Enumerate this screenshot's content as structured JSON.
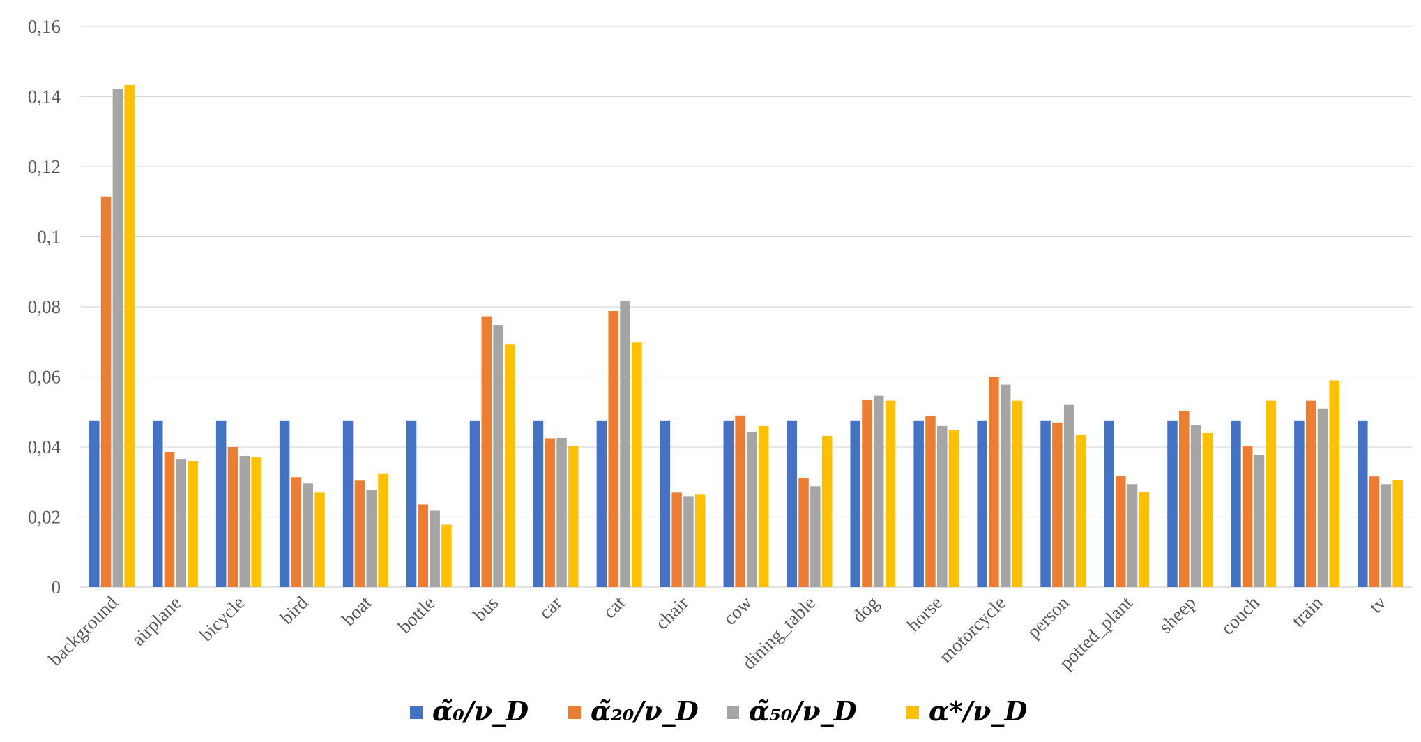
{
  "chart_data": {
    "type": "bar",
    "title": "",
    "xlabel": "",
    "ylabel": "",
    "ylim": [
      0,
      0.16
    ],
    "yticks": [
      "0",
      "0,02",
      "0,04",
      "0,06",
      "0,08",
      "0,1",
      "0,12",
      "0,14",
      "0,16"
    ],
    "grid": true,
    "legend_position": "bottom",
    "categories": [
      "background",
      "airplane",
      "bicycle",
      "bird",
      "boat",
      "bottle",
      "bus",
      "car",
      "cat",
      "chair",
      "cow",
      "dining_table",
      "dog",
      "horse",
      "motorcycle",
      "person",
      "potted_plant",
      "sheep",
      "couch",
      "train",
      "tv"
    ],
    "series": [
      {
        "name": "α̃₀/ν_D",
        "color": "#4472c4",
        "values": [
          0.0476,
          0.0476,
          0.0476,
          0.0476,
          0.0476,
          0.0476,
          0.0476,
          0.0476,
          0.0476,
          0.0476,
          0.0476,
          0.0476,
          0.0476,
          0.0476,
          0.0476,
          0.0476,
          0.0476,
          0.0476,
          0.0476,
          0.0476,
          0.0476
        ]
      },
      {
        "name": "α̃₂₀/ν_D",
        "color": "#ed7d31",
        "values": [
          0.1115,
          0.0386,
          0.04,
          0.0314,
          0.0304,
          0.0236,
          0.0773,
          0.0425,
          0.0788,
          0.027,
          0.049,
          0.0312,
          0.0535,
          0.0488,
          0.06,
          0.047,
          0.0318,
          0.0503,
          0.0402,
          0.0532,
          0.0316
        ]
      },
      {
        "name": "α̃₅₀/ν_D",
        "color": "#a5a5a5",
        "values": [
          0.1422,
          0.0366,
          0.0374,
          0.0296,
          0.0278,
          0.0218,
          0.0748,
          0.0426,
          0.0818,
          0.026,
          0.0444,
          0.0288,
          0.0546,
          0.046,
          0.0578,
          0.052,
          0.0294,
          0.0462,
          0.0378,
          0.051,
          0.0294
        ]
      },
      {
        "name": "α*/ν_D",
        "color": "#ffc000",
        "values": [
          0.1433,
          0.036,
          0.037,
          0.027,
          0.0325,
          0.0178,
          0.0694,
          0.0404,
          0.0698,
          0.0264,
          0.046,
          0.0432,
          0.0532,
          0.0448,
          0.0532,
          0.0434,
          0.0272,
          0.044,
          0.0532,
          0.059,
          0.0306
        ]
      }
    ]
  }
}
